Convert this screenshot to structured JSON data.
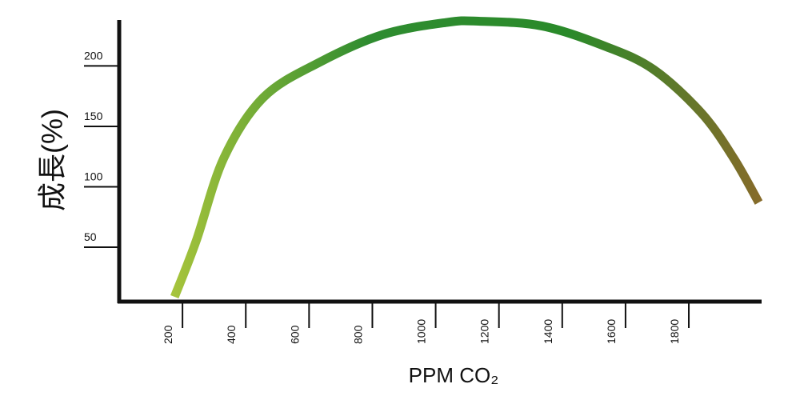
{
  "chart_data": {
    "type": "line",
    "x_label": "PPM CO₂",
    "y_label": "成長(%)",
    "x": [
      175,
      243,
      331,
      456,
      633,
      834,
      1035,
      1136,
      1337,
      1538,
      1689,
      1840,
      1941,
      2021
    ],
    "values": [
      9,
      55,
      124,
      174,
      203,
      226,
      236,
      237,
      233,
      216,
      197,
      161,
      124,
      87
    ],
    "gradient_colors": [
      "#a9c53c",
      "#2f8c30",
      "#2a8a2a",
      "#8a6a2a"
    ],
    "xlim": [
      0,
      2030
    ],
    "xticks": [
      200,
      400,
      600,
      800,
      1000,
      1200,
      1400,
      1600,
      1800
    ],
    "ylim": [
      5,
      238
    ],
    "yticks": [
      50,
      100,
      150,
      200
    ]
  }
}
